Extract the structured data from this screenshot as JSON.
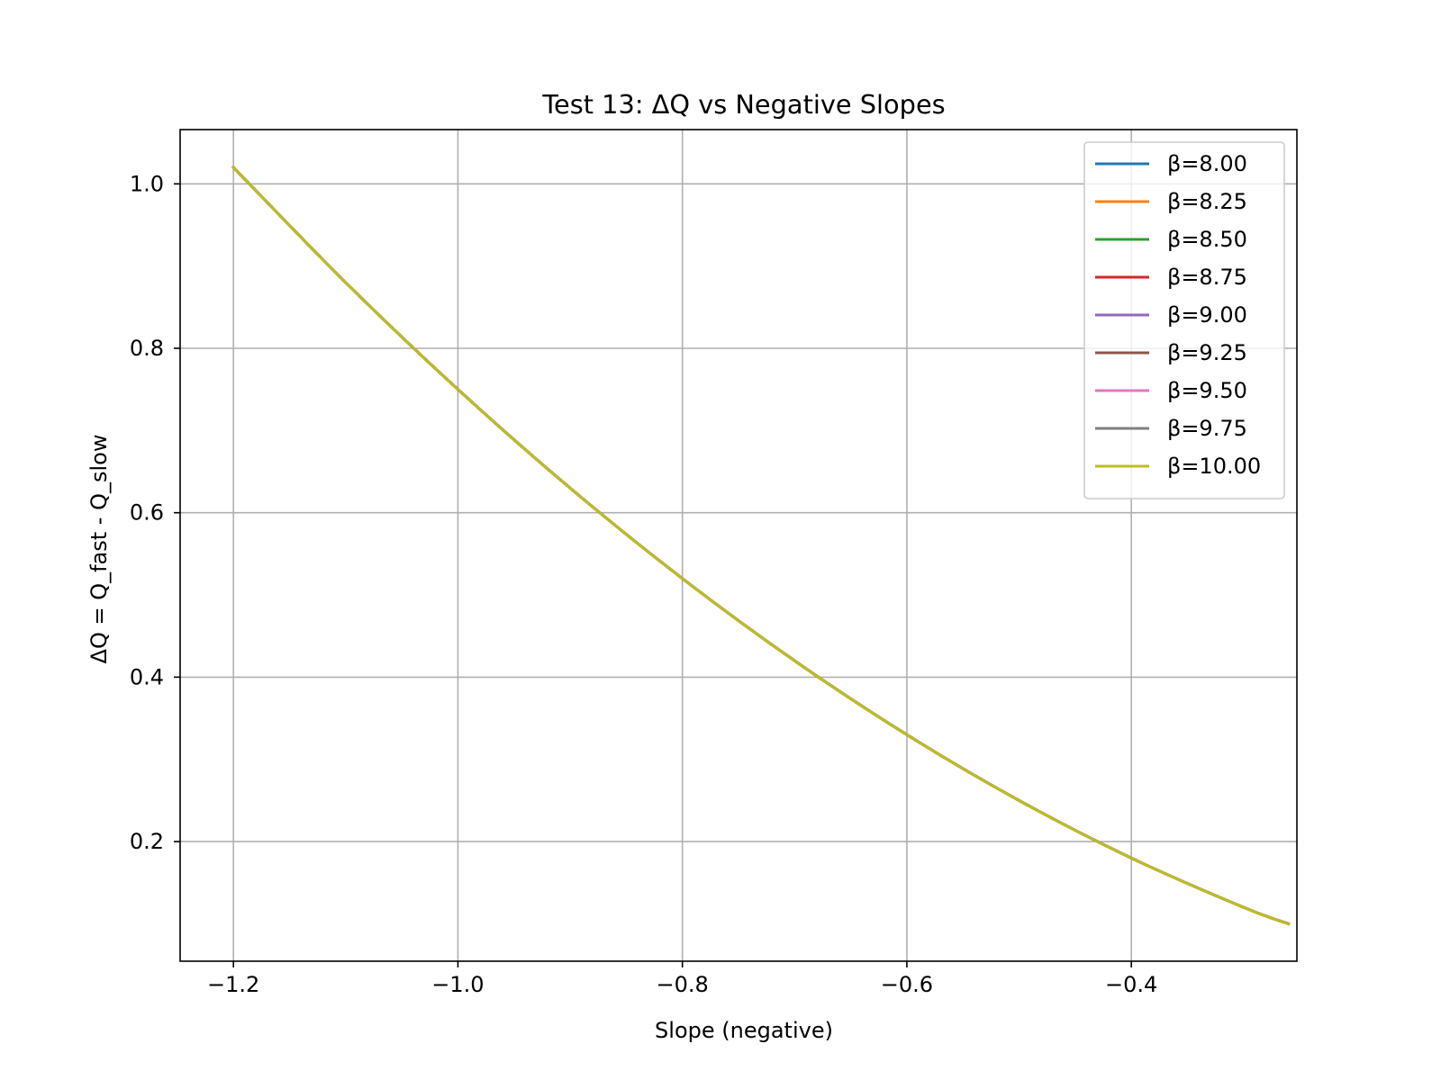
{
  "chart_data": {
    "type": "line",
    "title": "Test 13: ΔQ vs Negative Slopes",
    "xlabel": "Slope (negative)",
    "ylabel": "ΔQ = Q_fast - Q_slow",
    "xlim": [
      -1.2475,
      -0.2525
    ],
    "ylim": [
      0.0545,
      1.066
    ],
    "xticks": [
      -1.2,
      -1.0,
      -0.8,
      -0.6,
      -0.4
    ],
    "xtick_labels": [
      "−1.2",
      "−1.0",
      "−0.8",
      "−0.6",
      "−0.4"
    ],
    "yticks": [
      0.2,
      0.4,
      0.6,
      0.8,
      1.0
    ],
    "ytick_labels": [
      "0.2",
      "0.4",
      "0.6",
      "0.8",
      "1.0"
    ],
    "grid": true,
    "legend_position": "top-right",
    "x": [
      -1.2,
      -1.1,
      -1.0,
      -0.9,
      -0.8,
      -0.7,
      -0.6,
      -0.5,
      -0.4,
      -0.3,
      -0.26
    ],
    "series": [
      {
        "name": "β=8.00",
        "color": "#1f77b4",
        "values": [
          1.02,
          0.88,
          0.75,
          0.63,
          0.52,
          0.42,
          0.33,
          0.25,
          0.18,
          0.12,
          0.1
        ]
      },
      {
        "name": "β=8.25",
        "color": "#ff7f0e",
        "values": [
          1.02,
          0.88,
          0.75,
          0.63,
          0.52,
          0.42,
          0.33,
          0.25,
          0.18,
          0.12,
          0.1
        ]
      },
      {
        "name": "β=8.50",
        "color": "#2ca02c",
        "values": [
          1.02,
          0.88,
          0.75,
          0.63,
          0.52,
          0.42,
          0.33,
          0.25,
          0.18,
          0.12,
          0.1
        ]
      },
      {
        "name": "β=8.75",
        "color": "#d62728",
        "values": [
          1.02,
          0.88,
          0.75,
          0.63,
          0.52,
          0.42,
          0.33,
          0.25,
          0.18,
          0.12,
          0.1
        ]
      },
      {
        "name": "β=9.00",
        "color": "#9467bd",
        "values": [
          1.02,
          0.88,
          0.75,
          0.63,
          0.52,
          0.42,
          0.33,
          0.25,
          0.18,
          0.12,
          0.1
        ]
      },
      {
        "name": "β=9.25",
        "color": "#8c564b",
        "values": [
          1.02,
          0.88,
          0.75,
          0.63,
          0.52,
          0.42,
          0.33,
          0.25,
          0.18,
          0.12,
          0.1
        ]
      },
      {
        "name": "β=9.50",
        "color": "#e377c2",
        "values": [
          1.02,
          0.88,
          0.75,
          0.63,
          0.52,
          0.42,
          0.33,
          0.25,
          0.18,
          0.12,
          0.1
        ]
      },
      {
        "name": "β=9.75",
        "color": "#7f7f7f",
        "values": [
          1.02,
          0.88,
          0.75,
          0.63,
          0.52,
          0.42,
          0.33,
          0.25,
          0.18,
          0.12,
          0.1
        ]
      },
      {
        "name": "β=10.00",
        "color": "#bcbd22",
        "values": [
          1.02,
          0.88,
          0.75,
          0.63,
          0.52,
          0.42,
          0.33,
          0.25,
          0.18,
          0.12,
          0.1
        ]
      }
    ]
  }
}
